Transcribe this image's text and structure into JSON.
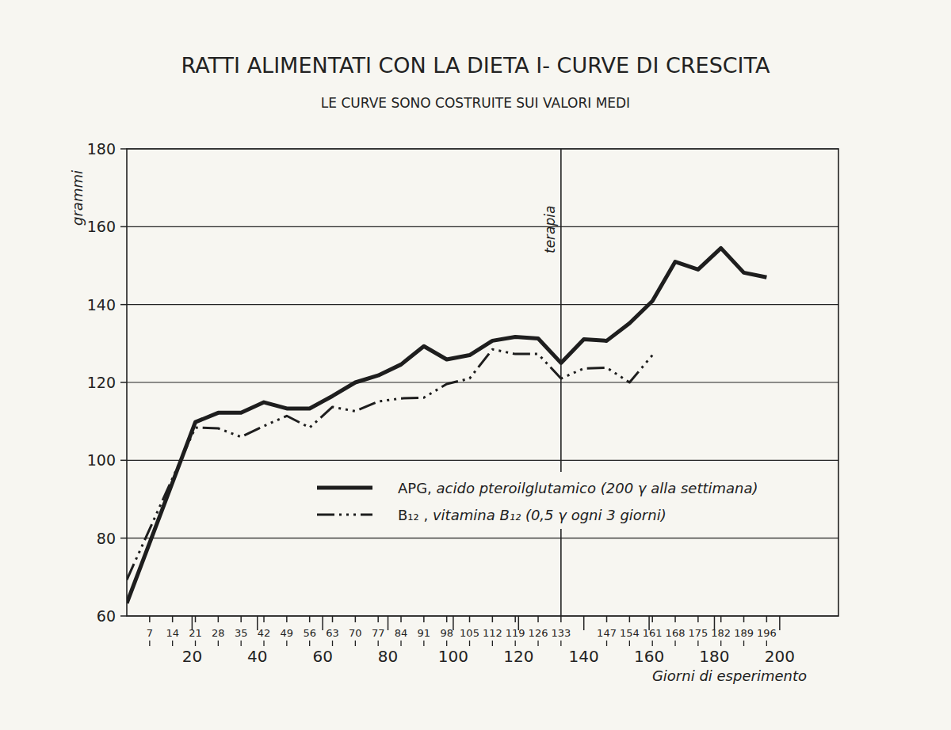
{
  "chart_data": {
    "type": "line",
    "title": "RATTI ALIMENTATI CON LA DIETA I- CURVE DI CRESCITA",
    "subtitle": "LE CURVE SONO COSTRUITE SUI VALORI MEDI",
    "x_label": "Giorni di esperimento",
    "y_label": "grammi",
    "x": [
      0,
      21,
      28,
      35,
      42,
      49,
      56,
      63,
      70,
      77,
      84,
      91,
      98,
      105,
      112,
      119,
      126,
      133,
      140,
      147,
      154,
      161,
      168,
      175,
      182,
      189,
      196
    ],
    "series": [
      {
        "name": "APG, acido pteroilglutamico (200 γ alla settimana)",
        "color": "#1e1e1e",
        "line_style": "solid",
        "values": [
          63.3,
          109.8,
          112.2,
          112.2,
          114.9,
          113.3,
          113.3,
          116.5,
          120,
          121.8,
          124.6,
          129.3,
          125.9,
          127,
          130.7,
          131.7,
          131.3,
          125,
          131.1,
          130.7,
          135.2,
          140.9,
          151,
          149,
          154.5,
          148.2,
          147
        ]
      },
      {
        "name": "B₁₂ , vitamina B₁₂ (0,5 γ ogni 3 giorni)",
        "color": "#1e1e1e",
        "line_style": "dashdotdot",
        "values": [
          69.3,
          108.4,
          108.2,
          106,
          108.8,
          111.4,
          108.4,
          113.7,
          112.6,
          115.1,
          115.9,
          116.1,
          119.6,
          121,
          128.5,
          127.3,
          127.3,
          121,
          123.6,
          123.8,
          120,
          127,
          null,
          null,
          null,
          null,
          null
        ]
      }
    ],
    "xlim": [
      0,
      218
    ],
    "ylim": [
      60,
      180
    ],
    "xticks": [
      7,
      14,
      20,
      21,
      28,
      35,
      40,
      42,
      49,
      56,
      60,
      63,
      70,
      77,
      80,
      84,
      91,
      98,
      100,
      105,
      112,
      119,
      120,
      126,
      133,
      140,
      147,
      154,
      160,
      161,
      168,
      175,
      180,
      182,
      189,
      196,
      200
    ],
    "yticks": [
      60,
      80,
      100,
      120,
      140,
      160,
      180
    ],
    "grid": true,
    "legend": "lower right",
    "annotations": [
      {
        "x": 133,
        "text": "terapia"
      }
    ]
  }
}
